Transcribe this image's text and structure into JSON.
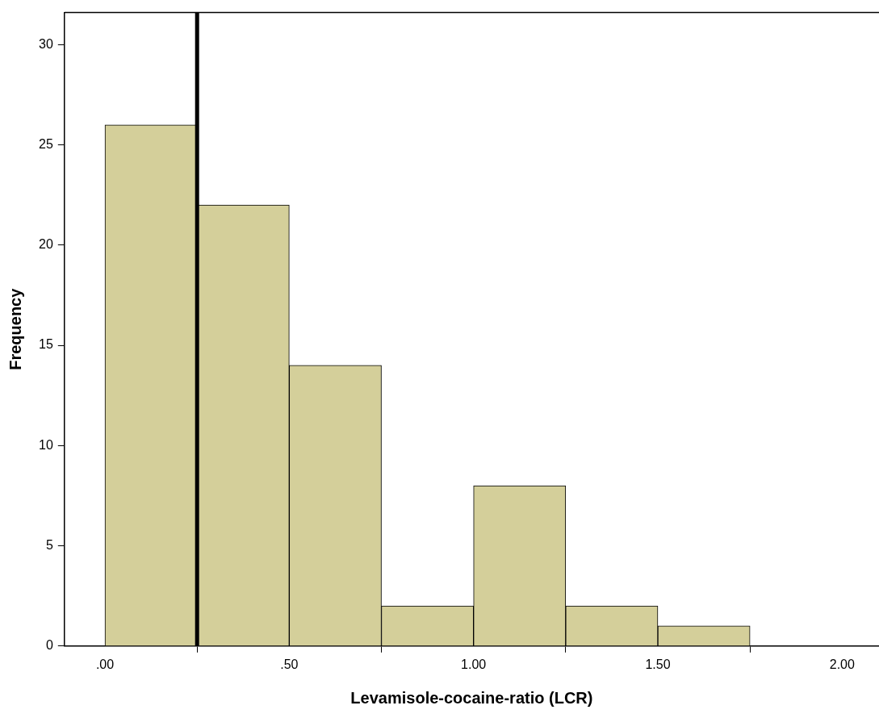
{
  "chart_data": {
    "type": "histogram",
    "xlabel": "Levamisole-cocaine-ratio (LCR)",
    "ylabel": "Frequency",
    "bins": [
      0,
      0.25,
      0.5,
      0.75,
      1.0,
      1.25,
      1.5,
      1.75
    ],
    "values": [
      26,
      22,
      14,
      2,
      8,
      2,
      1
    ],
    "color": "#d4cf9a",
    "xlim": [
      -0.11,
      2.1
    ],
    "xticks": [
      {
        "value": 0,
        "label": ".00"
      },
      {
        "value": 0.5,
        "label": ".50"
      },
      {
        "value": 1,
        "label": "1.00"
      },
      {
        "value": 1.5,
        "label": "1.50"
      },
      {
        "value": 2,
        "label": "2.00"
      }
    ],
    "ylim": [
      0,
      31.6
    ],
    "yticks": [
      0,
      5,
      10,
      15,
      20,
      25,
      30
    ],
    "ref_lines": [
      {
        "axis": "x",
        "value": 0.25,
        "color": "#000000"
      }
    ],
    "grid": false,
    "legend": false
  }
}
